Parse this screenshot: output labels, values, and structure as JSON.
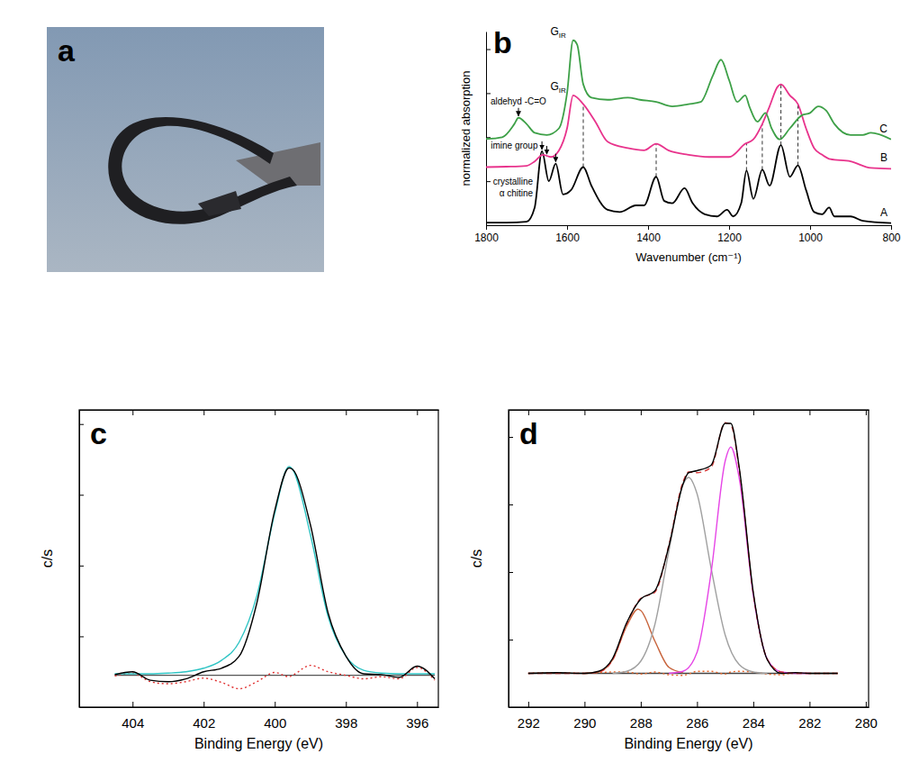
{
  "photo": {
    "panel": "a"
  },
  "chart_data": [
    {
      "panel": "b",
      "type": "line",
      "x_label": "Wavenumber (cm⁻¹)",
      "y_label": "normalized absorption",
      "xlim": [
        1800,
        800
      ],
      "xticks": [
        1800,
        1600,
        1400,
        1200,
        1000,
        800
      ],
      "ylim": [
        0,
        4.4
      ],
      "yticks": [
        0,
        1,
        2,
        3,
        4
      ],
      "tick_labels": "x",
      "series": [
        {
          "name": "A",
          "color": "#000000",
          "line_style": "solid",
          "x": [
            1800,
            1750,
            1700,
            1680,
            1662,
            1645,
            1628,
            1610,
            1590,
            1560,
            1540,
            1500,
            1470,
            1430,
            1410,
            1380,
            1360,
            1340,
            1310,
            1290,
            1260,
            1230,
            1205,
            1190,
            1170,
            1157,
            1140,
            1118,
            1100,
            1072,
            1050,
            1030,
            1010,
            990,
            970,
            953,
            940,
            900,
            870,
            800
          ],
          "values": [
            0.06,
            0.06,
            0.08,
            0.4,
            1.68,
            1.0,
            1.4,
            0.7,
            0.8,
            1.32,
            0.9,
            0.35,
            0.3,
            0.45,
            0.45,
            1.1,
            0.55,
            0.5,
            0.84,
            0.5,
            0.25,
            0.2,
            0.35,
            0.2,
            0.5,
            1.24,
            0.6,
            1.26,
            0.9,
            1.82,
            1.1,
            1.36,
            0.8,
            0.3,
            0.25,
            0.4,
            0.2,
            0.2,
            0.1,
            0.05
          ],
          "annotations": [
            {
              "text": "crystalline α chitine",
              "arrows": [
                1662,
                1628
              ]
            }
          ]
        },
        {
          "name": "B",
          "color": "#e8338c",
          "line_style": "solid",
          "x": [
            1800,
            1750,
            1700,
            1680,
            1660,
            1640,
            1620,
            1600,
            1585,
            1560,
            1530,
            1500,
            1450,
            1410,
            1380,
            1350,
            1300,
            1250,
            1200,
            1160,
            1140,
            1118,
            1100,
            1080,
            1072,
            1050,
            1030,
            1010,
            990,
            970,
            950,
            900,
            850,
            800
          ],
          "values": [
            1.32,
            1.33,
            1.35,
            1.45,
            1.6,
            1.55,
            1.7,
            2.2,
            2.95,
            2.75,
            2.35,
            1.9,
            1.75,
            1.7,
            1.85,
            1.7,
            1.6,
            1.55,
            1.55,
            1.85,
            1.95,
            2.3,
            2.7,
            3.15,
            3.2,
            2.95,
            2.75,
            2.2,
            1.75,
            1.6,
            1.5,
            1.45,
            1.3,
            1.28
          ],
          "annotations": [
            {
              "text": "imine group",
              "arrows": [
                1650
              ]
            },
            {
              "text": "G",
              "subscript": "IR",
              "x": 1585
            }
          ]
        },
        {
          "name": "C",
          "color": "#3da047",
          "line_style": "solid",
          "x": [
            1800,
            1760,
            1730,
            1720,
            1700,
            1680,
            1650,
            1620,
            1600,
            1585,
            1575,
            1560,
            1540,
            1500,
            1450,
            1420,
            1380,
            1340,
            1300,
            1270,
            1240,
            1220,
            1200,
            1180,
            1160,
            1150,
            1130,
            1110,
            1095,
            1075,
            1050,
            1020,
            1000,
            980,
            960,
            940,
            900,
            870,
            850,
            800
          ],
          "values": [
            1.96,
            2.0,
            2.3,
            2.44,
            2.3,
            2.1,
            2.05,
            2.2,
            3.0,
            4.2,
            4.1,
            3.2,
            2.9,
            2.85,
            2.9,
            2.85,
            2.8,
            2.7,
            2.75,
            2.8,
            3.4,
            3.76,
            3.3,
            2.8,
            2.95,
            2.7,
            2.35,
            2.55,
            2.2,
            1.95,
            2.2,
            2.5,
            2.55,
            2.7,
            2.6,
            2.3,
            2.05,
            2.05,
            2.1,
            1.95
          ],
          "annotations": [
            {
              "text": "aldehyd -C=O",
              "arrows": [
                1720
              ]
            },
            {
              "text": "G",
              "subscript": "IR",
              "x": 1585
            }
          ]
        }
      ],
      "band_positions": [
        1560,
        1380,
        1157,
        1118,
        1072,
        1030
      ]
    },
    {
      "panel": "c",
      "type": "line",
      "x_label": "Binding Energy (eV)",
      "y_label": "c/s",
      "xlim": [
        405.5,
        395.4
      ],
      "xticks": [
        404,
        402,
        400,
        398,
        396
      ],
      "ylim": [
        0,
        4.2
      ],
      "yticks": [
        1,
        2,
        3,
        4
      ],
      "tick_labels": "x",
      "series": [
        {
          "color": "#555555",
          "line_style": "solid",
          "x": [
            404.5,
            395.5
          ],
          "values": [
            0.45,
            0.45
          ]
        },
        {
          "color": "#e03030",
          "line_style": "dotted",
          "x": [
            404.5,
            404,
            403.5,
            403,
            402.5,
            402,
            401.5,
            401,
            400.5,
            400,
            399.6,
            399.5,
            399,
            398.5,
            398,
            397.5,
            397,
            396.5,
            396,
            395.5
          ],
          "values": [
            0.44,
            0.48,
            0.36,
            0.33,
            0.36,
            0.41,
            0.35,
            0.26,
            0.36,
            0.49,
            0.43,
            0.45,
            0.59,
            0.5,
            0.45,
            0.4,
            0.43,
            0.4,
            0.56,
            0.38
          ]
        },
        {
          "color": "#2ec4c4",
          "line_style": "solid",
          "x": [
            404.5,
            404,
            403.5,
            403,
            402.5,
            402,
            401.5,
            401,
            400.5,
            400,
            399.6,
            399.5,
            399,
            398.5,
            398,
            397.5,
            397,
            396.5,
            396,
            395.5
          ],
          "values": [
            0.47,
            0.47,
            0.47,
            0.48,
            0.5,
            0.55,
            0.66,
            0.92,
            1.58,
            2.74,
            3.4,
            3.36,
            2.44,
            1.28,
            0.72,
            0.52,
            0.48,
            0.47,
            0.47,
            0.47
          ]
        },
        {
          "color": "#000000",
          "line_style": "solid",
          "x": [
            404.5,
            404,
            403.5,
            403,
            402.5,
            402,
            401.5,
            401,
            400.5,
            400,
            399.6,
            399.5,
            399,
            398.5,
            398,
            397.5,
            397,
            396.5,
            396,
            395.5
          ],
          "values": [
            0.46,
            0.5,
            0.38,
            0.36,
            0.4,
            0.5,
            0.55,
            0.72,
            1.48,
            2.78,
            3.38,
            3.36,
            2.58,
            1.33,
            0.72,
            0.47,
            0.46,
            0.42,
            0.58,
            0.4
          ]
        }
      ]
    },
    {
      "panel": "d",
      "type": "line",
      "x_label": "Binding Energy (eV)",
      "y_label": "c/s",
      "xlim": [
        292.7,
        279.9
      ],
      "xticks": [
        292,
        290,
        288,
        286,
        284,
        282,
        280
      ],
      "ylim": [
        0,
        4.4
      ],
      "yticks": [
        1,
        2,
        3,
        4
      ],
      "tick_labels": "x",
      "series": [
        {
          "color": "#444444",
          "line_style": "solid",
          "x": [
            292,
            281
          ],
          "values": [
            0.5,
            0.5
          ]
        },
        {
          "color": "#e8662a",
          "line_style": "dotted",
          "x": [
            292,
            291,
            290,
            289.5,
            289,
            288.5,
            288,
            287.5,
            287,
            286.5,
            286.3,
            286,
            285.5,
            285,
            284.8,
            284.5,
            284,
            283.5,
            283,
            282.5,
            282,
            281
          ],
          "values": [
            0.5,
            0.51,
            0.5,
            0.51,
            0.52,
            0.52,
            0.49,
            0.52,
            0.48,
            0.47,
            0.49,
            0.53,
            0.53,
            0.49,
            0.52,
            0.53,
            0.52,
            0.49,
            0.48,
            0.51,
            0.5,
            0.5
          ]
        },
        {
          "color": "#c8643c",
          "line_style": "solid",
          "x": [
            290,
            289.5,
            289,
            288.5,
            288.1,
            288,
            287.5,
            287,
            286.5
          ],
          "values": [
            0.5,
            0.52,
            0.7,
            1.2,
            1.45,
            1.43,
            0.98,
            0.59,
            0.51
          ]
        },
        {
          "color": "#a0a0a0",
          "line_style": "solid",
          "x": [
            289,
            288.5,
            288,
            287.5,
            287,
            286.5,
            286.3,
            286,
            285.5,
            285,
            284.5,
            284,
            283.5
          ],
          "values": [
            0.5,
            0.53,
            0.68,
            1.22,
            2.31,
            3.29,
            3.4,
            3.16,
            2.06,
            1.07,
            0.63,
            0.52,
            0.5
          ]
        },
        {
          "color": "#e645e6",
          "line_style": "solid",
          "x": [
            287,
            286.5,
            286,
            285.5,
            285,
            284.8,
            284.5,
            284,
            283.5,
            283,
            282.5,
            282
          ],
          "values": [
            0.5,
            0.53,
            0.81,
            1.99,
            3.64,
            3.85,
            3.39,
            1.66,
            0.71,
            0.52,
            0.5,
            0.5
          ]
        },
        {
          "color": "#d93b3b",
          "line_style": "dashed",
          "x": [
            292,
            291,
            290,
            289.5,
            289,
            288.5,
            288,
            287.5,
            287,
            286.5,
            286.3,
            286,
            285.5,
            285,
            284.8,
            284.5,
            284,
            283.5,
            283,
            282.5,
            282,
            281
          ],
          "values": [
            0.5,
            0.5,
            0.5,
            0.52,
            0.7,
            1.23,
            1.61,
            1.7,
            2.4,
            3.33,
            3.48,
            3.47,
            3.55,
            4.21,
            4.18,
            3.52,
            1.68,
            0.71,
            0.52,
            0.5,
            0.5,
            0.5
          ]
        },
        {
          "color": "#000000",
          "line_style": "solid",
          "x": [
            292,
            291,
            290,
            289.5,
            289,
            288.5,
            288,
            287.5,
            287,
            286.5,
            286.3,
            286,
            285.5,
            285,
            284.8,
            284.5,
            284,
            283.5,
            283,
            282.5,
            282,
            281
          ],
          "values": [
            0.5,
            0.51,
            0.5,
            0.53,
            0.72,
            1.25,
            1.6,
            1.72,
            2.38,
            3.3,
            3.47,
            3.5,
            3.58,
            4.2,
            4.2,
            3.55,
            1.7,
            0.7,
            0.5,
            0.51,
            0.5,
            0.5
          ]
        }
      ]
    }
  ]
}
